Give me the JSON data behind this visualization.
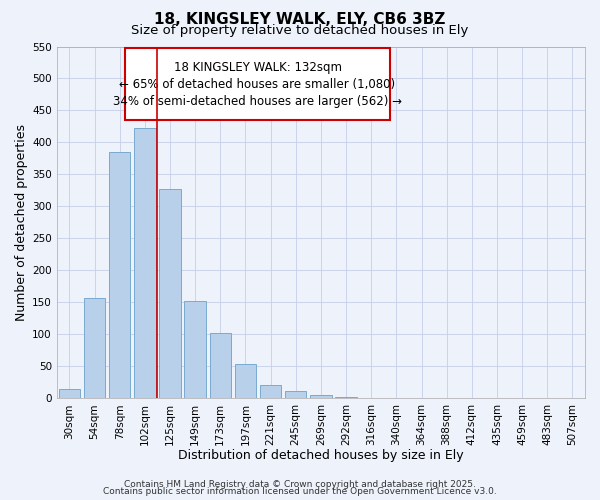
{
  "title": "18, KINGSLEY WALK, ELY, CB6 3BZ",
  "subtitle": "Size of property relative to detached houses in Ely",
  "xlabel": "Distribution of detached houses by size in Ely",
  "ylabel": "Number of detached properties",
  "bar_labels": [
    "30sqm",
    "54sqm",
    "78sqm",
    "102sqm",
    "125sqm",
    "149sqm",
    "173sqm",
    "197sqm",
    "221sqm",
    "245sqm",
    "269sqm",
    "292sqm",
    "316sqm",
    "340sqm",
    "364sqm",
    "388sqm",
    "412sqm",
    "435sqm",
    "459sqm",
    "483sqm",
    "507sqm"
  ],
  "bar_values": [
    15,
    157,
    385,
    422,
    327,
    152,
    102,
    54,
    21,
    12,
    5,
    2,
    1,
    1,
    0,
    0,
    0,
    0,
    0,
    0,
    0
  ],
  "bar_color": "#b8d0ea",
  "bar_edge_color": "#7aaad0",
  "ylim": [
    0,
    550
  ],
  "yticks": [
    0,
    50,
    100,
    150,
    200,
    250,
    300,
    350,
    400,
    450,
    500,
    550
  ],
  "vline_color": "#cc0000",
  "vline_x": 3.5,
  "annotation_title": "18 KINGSLEY WALK: 132sqm",
  "annotation_line1": "← 65% of detached houses are smaller (1,080)",
  "annotation_line2": "34% of semi-detached houses are larger (562) →",
  "annotation_box_color": "#cc0000",
  "footer1": "Contains HM Land Registry data © Crown copyright and database right 2025.",
  "footer2": "Contains public sector information licensed under the Open Government Licence v3.0.",
  "background_color": "#eef2fb",
  "grid_color": "#c5cfe8",
  "title_fontsize": 11,
  "subtitle_fontsize": 9.5,
  "axis_label_fontsize": 9,
  "tick_fontsize": 7.5,
  "annotation_fontsize": 8.5,
  "footer_fontsize": 6.5
}
